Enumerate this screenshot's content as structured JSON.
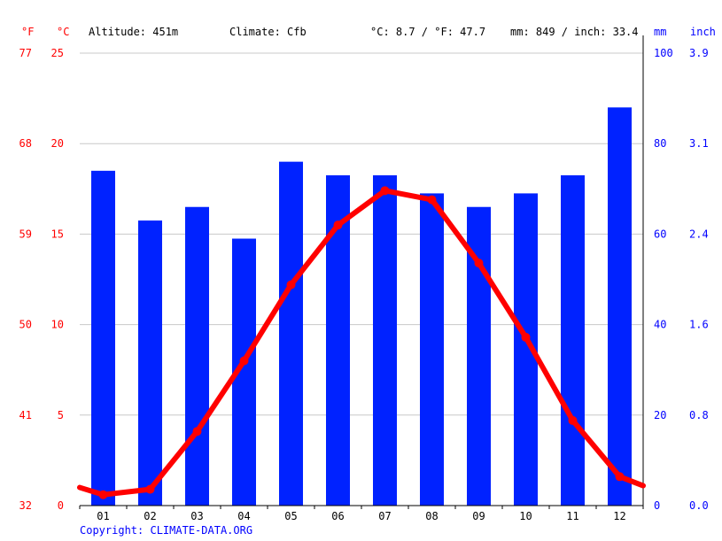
{
  "header": {
    "unit_f": "°F",
    "unit_c": "°C",
    "altitude": "Altitude: 451m",
    "climate": "Climate: Cfb",
    "temp_avg": "°C: 8.7 / °F: 47.7",
    "precip_avg": "mm: 849 / inch: 33.4",
    "unit_mm": "mm",
    "unit_inch": "inch"
  },
  "footer": {
    "copyright": "Copyright: CLIMATE-DATA.ORG"
  },
  "colors": {
    "temperature": "#ff0000",
    "precipitation": "#0022ff",
    "grid": "#c8c8c8"
  },
  "chart_data": {
    "type": "bar",
    "categories": [
      "01",
      "02",
      "03",
      "04",
      "05",
      "06",
      "07",
      "08",
      "09",
      "10",
      "11",
      "12"
    ],
    "series": [
      {
        "kind": "bar",
        "axis": "mm",
        "values": [
          74,
          63,
          66,
          59,
          76,
          73,
          73,
          69,
          66,
          69,
          73,
          88
        ]
      },
      {
        "kind": "line",
        "axis": "c",
        "values": [
          0.6,
          0.9,
          4.1,
          8.0,
          12.2,
          15.5,
          17.4,
          16.9,
          13.4,
          9.3,
          4.7,
          1.6
        ]
      }
    ],
    "line_edges_c": [
      1.0,
      1.1
    ],
    "axes": {
      "c": {
        "ylim": [
          0,
          25
        ],
        "ticks": [
          "0",
          "5",
          "10",
          "15",
          "20",
          "25"
        ]
      },
      "f": {
        "ticks": [
          "32",
          "41",
          "50",
          "59",
          "68",
          "77"
        ]
      },
      "mm": {
        "ylim": [
          0,
          100
        ],
        "ticks": [
          "0",
          "20",
          "40",
          "60",
          "80",
          "100"
        ]
      },
      "inch": {
        "ticks": [
          "0.0",
          "0.8",
          "1.6",
          "2.4",
          "3.1",
          "3.9"
        ]
      }
    },
    "grid": true
  }
}
